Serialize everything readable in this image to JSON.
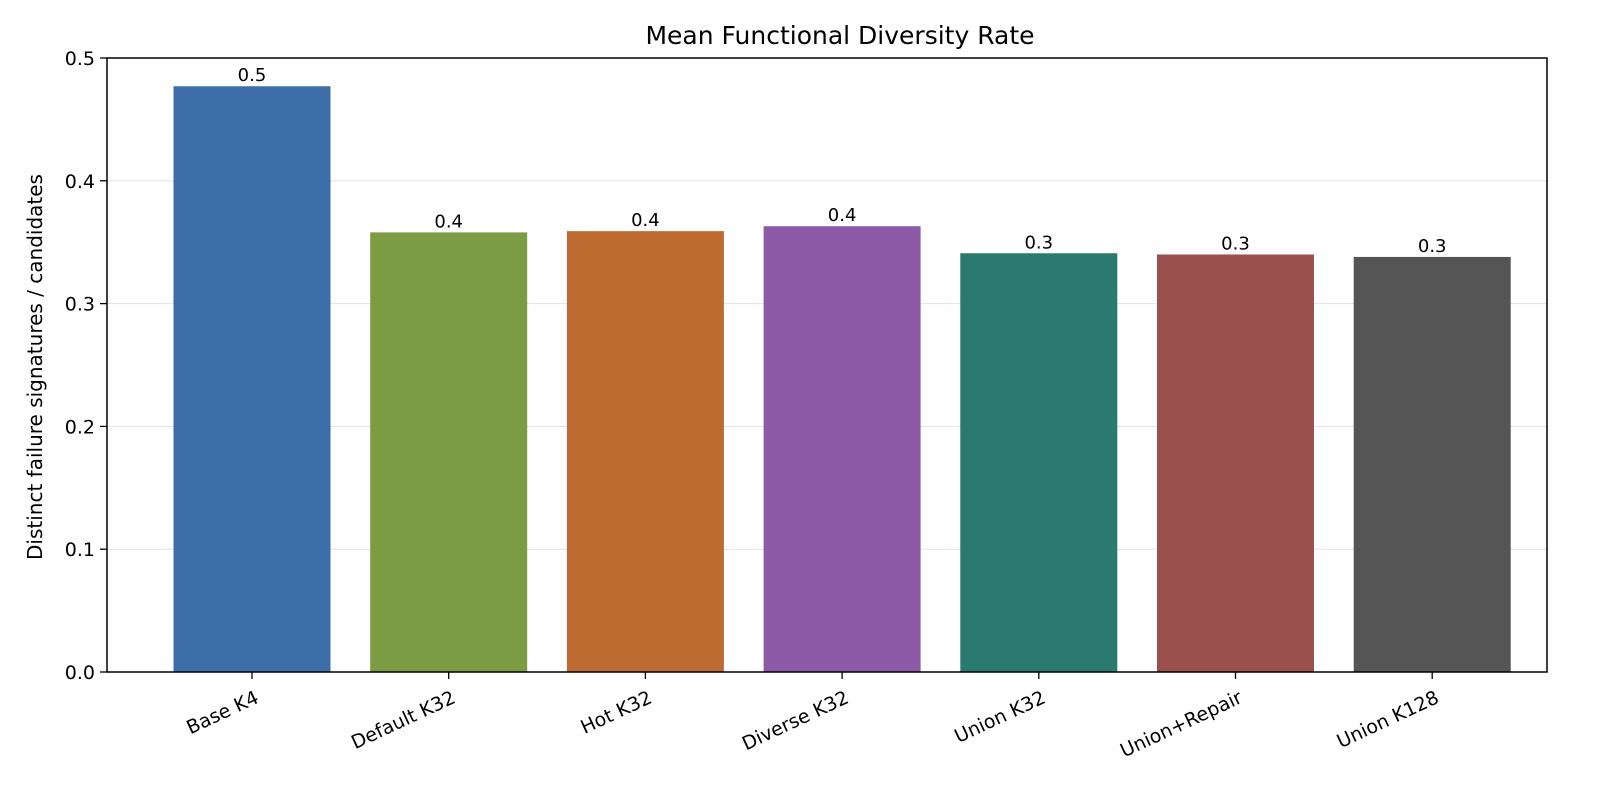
{
  "chart_data": {
    "type": "bar",
    "title": "Mean Functional Diversity Rate",
    "xlabel": "",
    "ylabel": "Distinct failure signatures / candidates",
    "ylim": [
      0,
      0.5
    ],
    "yticks": [
      "0.0",
      "0.1",
      "0.2",
      "0.3",
      "0.4",
      "0.5"
    ],
    "grid": "y",
    "categories": [
      "Base K4",
      "Default K32",
      "Hot K32",
      "Diverse K32",
      "Union K32",
      "Union+Repair",
      "Union K128"
    ],
    "values": [
      0.477,
      0.358,
      0.359,
      0.363,
      0.341,
      0.34,
      0.338
    ],
    "value_labels": [
      "0.5",
      "0.4",
      "0.4",
      "0.4",
      "0.3",
      "0.3",
      "0.3"
    ],
    "colors": [
      "#3d6ea8",
      "#7b9c42",
      "#bd6b30",
      "#8c5aa6",
      "#2b7a70",
      "#9a504c",
      "#555555"
    ]
  }
}
